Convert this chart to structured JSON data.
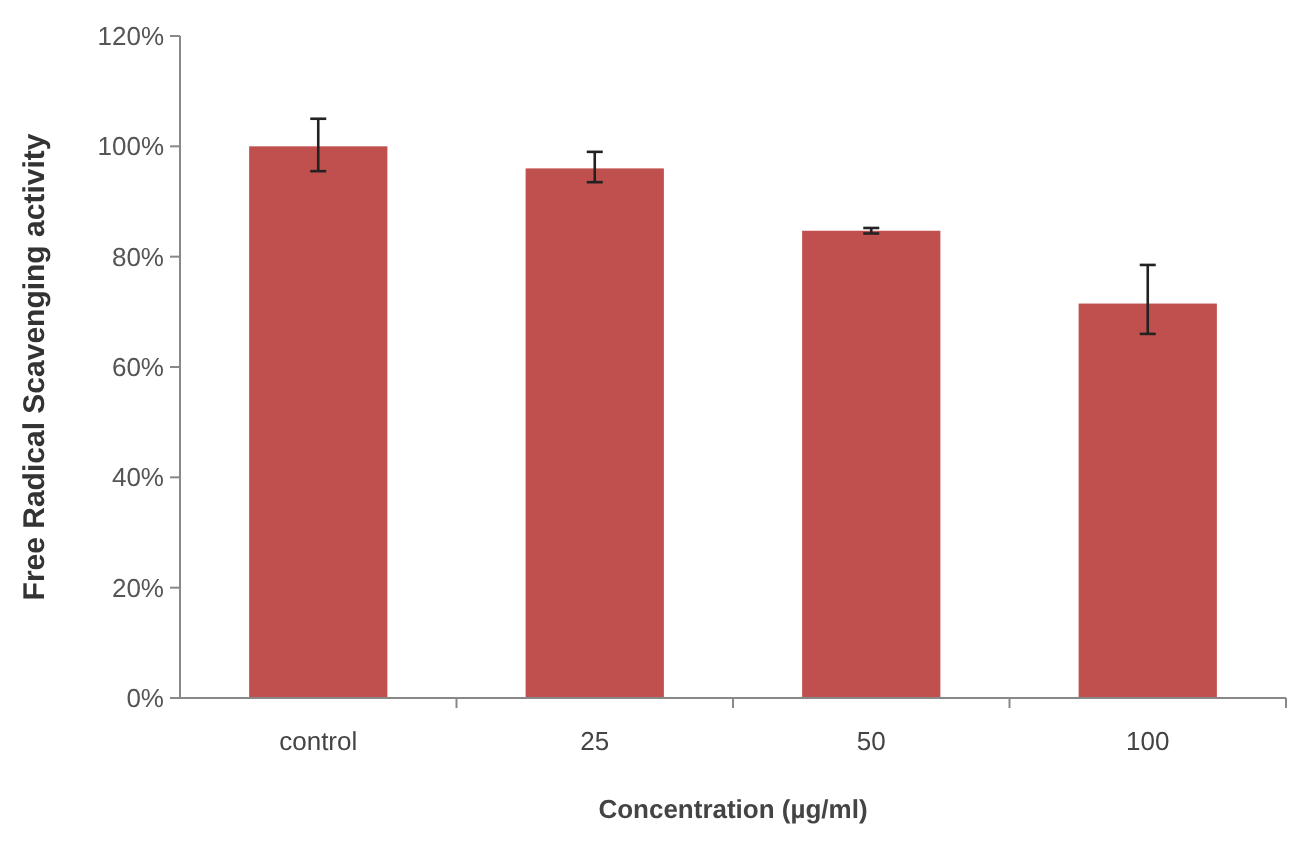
{
  "chart_data": {
    "type": "bar",
    "xlabel": "Concentration (µg/ml)",
    "ylabel": "Free Radical Scavenging activity",
    "categories": [
      "control",
      "25",
      "50",
      "100"
    ],
    "values": [
      100,
      96,
      84.7,
      71.5
    ],
    "errors": [
      [
        95.5,
        105
      ],
      [
        93.5,
        99
      ],
      [
        84.2,
        85.2
      ],
      [
        66,
        78.5
      ]
    ],
    "color": "#c0504d",
    "ylim": [
      0,
      120
    ],
    "yticks": [
      {
        "value": 0,
        "label": "0%"
      },
      {
        "value": 20,
        "label": "20%"
      },
      {
        "value": 40,
        "label": "40%"
      },
      {
        "value": 60,
        "label": "60%"
      },
      {
        "value": 80,
        "label": "80%"
      },
      {
        "value": 100,
        "label": "100%"
      },
      {
        "value": 120,
        "label": "120%"
      }
    ]
  }
}
